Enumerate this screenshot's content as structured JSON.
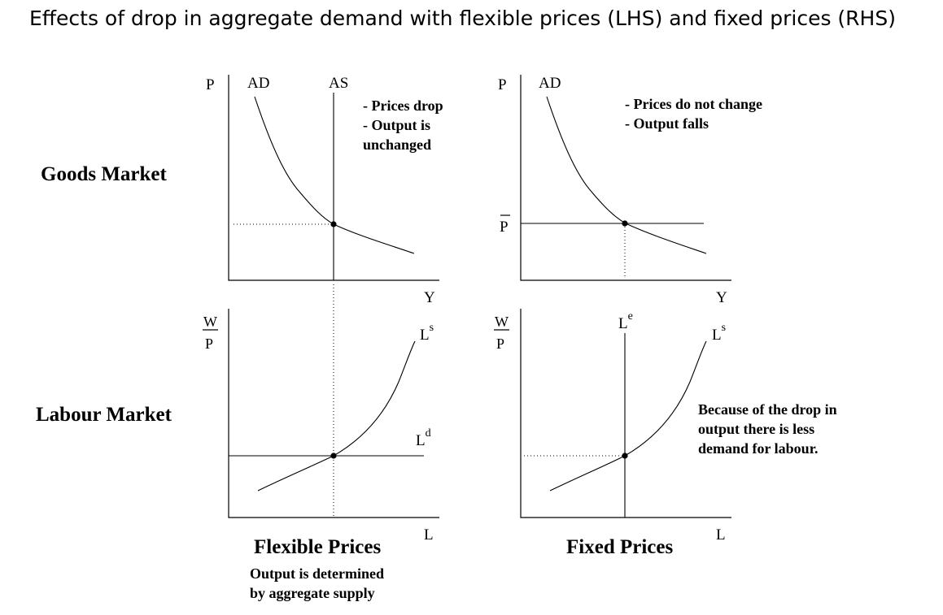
{
  "title": "Effects of drop in aggregate demand with flexible prices (LHS) and fixed prices (RHS)",
  "row_labels": {
    "goods": "Goods Market",
    "labour": "Labour Market"
  },
  "panels": {
    "flex_goods": {
      "y_axis": "P",
      "x_axis": "Y",
      "curve_labels": {
        "ad": "AD",
        "as": "AS"
      },
      "notes": [
        "- Prices drop",
        "- Output is",
        "unchanged"
      ]
    },
    "fixed_goods": {
      "y_axis": "P",
      "x_axis": "Y",
      "curve_labels": {
        "ad": "AD"
      },
      "price_level": "P",
      "notes": [
        "- Prices do not change",
        "- Output falls"
      ]
    },
    "flex_labour": {
      "y_num": "W",
      "y_den": "P",
      "x_axis": "L",
      "supply_base": "L",
      "supply_sup": "s",
      "demand_base": "L",
      "demand_sup": "d"
    },
    "fixed_labour": {
      "y_num": "W",
      "y_den": "P",
      "x_axis": "L",
      "emp_base": "L",
      "emp_sup": "e",
      "supply_base": "L",
      "supply_sup": "s",
      "notes": [
        "Because of the drop in",
        "output there is less",
        "demand for labour."
      ]
    }
  },
  "captions": {
    "flex": {
      "title": "Flexible Prices",
      "sub": [
        "Output is determined",
        "by aggregate supply"
      ]
    },
    "fixed": {
      "title": "Fixed Prices"
    }
  }
}
